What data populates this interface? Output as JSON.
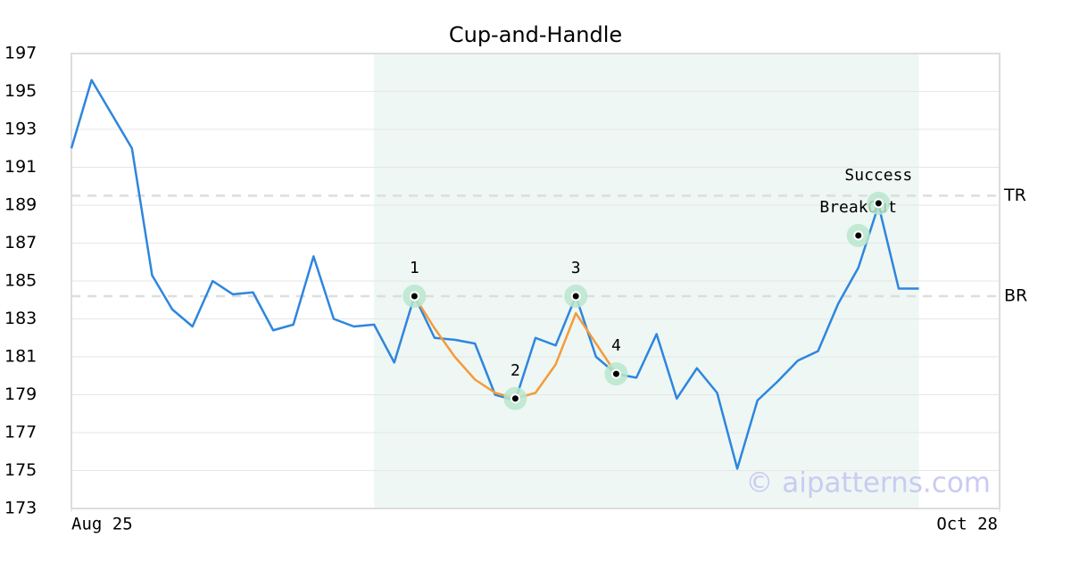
{
  "chart_data": {
    "type": "line",
    "title": "Cup-and-Handle",
    "x": [
      0,
      1,
      2,
      3,
      4,
      5,
      6,
      7,
      8,
      9,
      10,
      11,
      12,
      13,
      14,
      15,
      16,
      17,
      18,
      19,
      20,
      21,
      22,
      23,
      24,
      25,
      26,
      27,
      28,
      29,
      30,
      31,
      32,
      33,
      34,
      35,
      36,
      37,
      38,
      39,
      40,
      41,
      42
    ],
    "xlim": [
      0,
      46
    ],
    "xticks": [
      {
        "value": 0,
        "label": "Aug 25"
      },
      {
        "value": 46,
        "label": "Oct 28"
      }
    ],
    "ylim": [
      173,
      197
    ],
    "yticks": [
      173,
      175,
      177,
      179,
      181,
      183,
      185,
      187,
      189,
      191,
      193,
      195,
      197
    ],
    "grid": true,
    "series": [
      {
        "color": "#2e86de",
        "values": [
          192.0,
          195.6,
          193.8,
          192.0,
          185.3,
          183.5,
          182.6,
          185.0,
          184.3,
          184.4,
          182.4,
          182.7,
          186.3,
          183.0,
          182.6,
          182.7,
          180.7,
          184.2,
          182.0,
          181.9,
          181.7,
          179.0,
          178.7,
          182.0,
          181.6,
          184.2,
          181.0,
          180.1,
          179.9,
          182.2,
          178.8,
          180.4,
          179.1,
          175.1,
          178.7,
          179.7,
          180.8,
          181.3,
          183.8,
          185.7,
          189.0,
          184.6,
          184.6
        ]
      },
      {
        "color": "#f39c3c",
        "values": [
          null,
          null,
          null,
          null,
          null,
          null,
          null,
          null,
          null,
          null,
          null,
          null,
          null,
          null,
          null,
          null,
          null,
          184.2,
          182.5,
          181.0,
          179.8,
          179.1,
          178.8,
          179.1,
          180.6,
          183.3,
          181.7,
          180.1,
          null,
          null,
          null,
          null,
          null,
          null,
          null,
          null,
          null,
          null,
          null,
          null,
          null,
          null,
          null
        ]
      }
    ],
    "highlight": [
      15,
      42
    ],
    "hlines": [
      {
        "label": "TR",
        "value": 189.5
      },
      {
        "label": "BR",
        "value": 184.2
      }
    ],
    "points": [
      {
        "label": "1",
        "x": 17,
        "y": 184.2
      },
      {
        "label": "2",
        "x": 22,
        "y": 178.8
      },
      {
        "label": "3",
        "x": 25,
        "y": 184.2
      },
      {
        "label": "4",
        "x": 27,
        "y": 180.1
      },
      {
        "label": "BreakOut",
        "x": 39,
        "y": 187.4
      },
      {
        "label": "Success",
        "x": 40,
        "y": 189.1
      }
    ],
    "watermark": "© aipatterns.com"
  }
}
